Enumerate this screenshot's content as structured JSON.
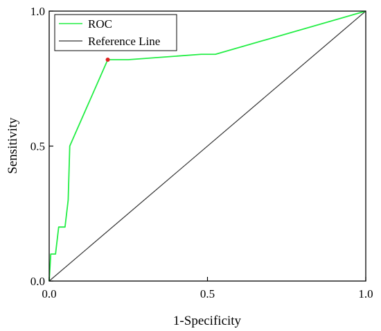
{
  "chart_data": {
    "type": "line",
    "xlabel": "1-Specificity",
    "ylabel": "Sensitivity",
    "xlim": [
      0,
      1
    ],
    "ylim": [
      0,
      1
    ],
    "x_ticks": [
      "0.0",
      "0.5",
      "1.0"
    ],
    "y_ticks": [
      "0.0",
      "0.5",
      "1.0"
    ],
    "grid": false,
    "legend_position": "top-left",
    "series": [
      {
        "name": "ROC",
        "color": "#22ee44",
        "x": [
          0,
          0.005,
          0.01,
          0.02,
          0.03,
          0.05,
          0.06,
          0.065,
          0.185,
          0.25,
          0.48,
          0.525,
          1.0
        ],
        "y": [
          0,
          0.1,
          0.1,
          0.1,
          0.2,
          0.2,
          0.3,
          0.5,
          0.82,
          0.82,
          0.84,
          0.84,
          1.0
        ]
      },
      {
        "name": "Reference Line",
        "color": "#333333",
        "x": [
          0,
          1
        ],
        "y": [
          0,
          1
        ]
      }
    ],
    "highlight_point": {
      "x": 0.185,
      "y": 0.82,
      "color": "#e02020"
    }
  }
}
